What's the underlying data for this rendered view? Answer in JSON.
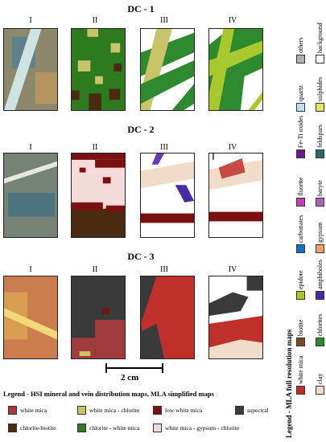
{
  "rows": [
    {
      "title": "DC - 1",
      "cols": [
        "I",
        "II",
        "III",
        "IV"
      ]
    },
    {
      "title": "DC - 2",
      "cols": [
        "I",
        "II",
        "III",
        "IV"
      ]
    },
    {
      "title": "DC - 3",
      "cols": [
        "I",
        "II",
        "III",
        "IV"
      ]
    }
  ],
  "scale_bar": {
    "label": "2 cm"
  },
  "bottom_legend": {
    "title": "Legend - HSI mineral and vein distribution maps, MLA simplified maps",
    "items": [
      {
        "label": "white mica",
        "color": "#a23b3b"
      },
      {
        "label": "white mica - chlorite",
        "color": "#c9c36a"
      },
      {
        "label": "low white mica",
        "color": "#7a1010"
      },
      {
        "label": "aspectral",
        "color": "#3a3a3a"
      },
      {
        "label": "chlorite-biotite",
        "color": "#4a2a10"
      },
      {
        "label": "chlorite - white mica",
        "color": "#2e7a1e"
      },
      {
        "label": "white mica - gypsum - chlorite",
        "color": "#f5dada"
      }
    ]
  },
  "side_legend": {
    "title": "Legend - MLA full resolution maps",
    "pairs": [
      [
        {
          "label": "others",
          "color": "#b0b0b0"
        },
        {
          "label": "background",
          "color": "#ffffff"
        }
      ],
      [
        {
          "label": "quartz",
          "color": "#bfe0f5"
        },
        {
          "label": "sulphides",
          "color": "#e8e46a"
        }
      ],
      [
        {
          "label": "Fe-Ti oxides",
          "color": "#6a1a8a"
        },
        {
          "label": "feldspars",
          "color": "#2a6a6a"
        }
      ],
      [
        {
          "label": "fluorite",
          "color": "#c040b0"
        },
        {
          "label": "baryte",
          "color": "#b060c0"
        }
      ],
      [
        {
          "label": "carbonates",
          "color": "#1a70c0"
        },
        {
          "label": "gypsum",
          "color": "#f0a070"
        }
      ],
      [
        {
          "label": "epidote",
          "color": "#a8c830"
        },
        {
          "label": "amphiboles",
          "color": "#4a2aa0"
        }
      ],
      [
        {
          "label": "biotite",
          "color": "#7a4a20"
        },
        {
          "label": "chlorites",
          "color": "#2e8a2e"
        }
      ],
      [
        {
          "label": "white mica",
          "color": "#c0302a"
        },
        {
          "label": "clay",
          "color": "#f0dcc8"
        }
      ]
    ]
  }
}
